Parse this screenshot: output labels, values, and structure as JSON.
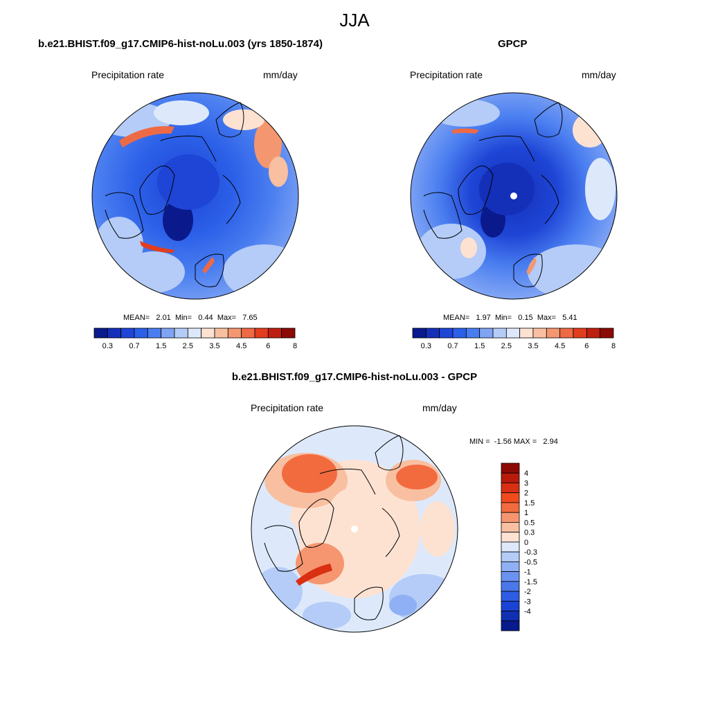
{
  "figure": {
    "title": "JJA"
  },
  "panels": [
    {
      "title": "b.e21.BHIST.f09_g17.CMIP6-hist-noLu.003 (yrs 1850-1874)",
      "left_label": "Precipitation rate",
      "right_label": "mm/day",
      "stats": {
        "mean_label": "MEAN=",
        "mean": "2.01",
        "min_label": "Min=",
        "min": "0.44",
        "max_label": "Max=",
        "max": "7.65"
      }
    },
    {
      "title": "GPCP",
      "left_label": "Precipitation rate",
      "right_label": "mm/day",
      "stats": {
        "mean_label": "MEAN=",
        "mean": "1.97",
        "min_label": "Min=",
        "min": "0.15",
        "max_label": "Max=",
        "max": "5.41"
      }
    },
    {
      "title": "b.e21.BHIST.f09_g17.CMIP6-hist-noLu.003 - GPCP",
      "left_label": "Precipitation rate",
      "right_label": "mm/day",
      "stats": {
        "min_label": "MIN =",
        "min": "-1.56",
        "max_label": "MAX =",
        "max": "2.94"
      }
    }
  ],
  "colorbars": {
    "abs": {
      "orientation": "horizontal",
      "colors": [
        "#0a1a8c",
        "#1430b8",
        "#1e45d6",
        "#2c60e8",
        "#4a7ef0",
        "#7fa4f4",
        "#b4ccf7",
        "#dde9fb",
        "#fde2d2",
        "#f8bfa0",
        "#f4966f",
        "#ee6a45",
        "#e23d1f",
        "#bf1f10",
        "#8c0a05"
      ],
      "ticks": [
        "0.3",
        "0.7",
        "1.5",
        "2.5",
        "3.5",
        "4.5",
        "6",
        "8"
      ]
    },
    "diff": {
      "orientation": "vertical",
      "colors": [
        "#8c0a05",
        "#b81a0c",
        "#d92f12",
        "#f04a1d",
        "#f26b3f",
        "#f59670",
        "#f8bfa0",
        "#fde2d2",
        "#dde9fb",
        "#b4ccf7",
        "#8fb0f4",
        "#6a92f0",
        "#4a77ea",
        "#2e5de4",
        "#1a42d4",
        "#1030b2",
        "#081a8c"
      ],
      "labels": [
        "4",
        "3",
        "2",
        "1.5",
        "1",
        "0.5",
        "0.3",
        "0",
        "-0.3",
        "-0.5",
        "-1",
        "-1.5",
        "-2",
        "-3",
        "-4"
      ]
    }
  }
}
